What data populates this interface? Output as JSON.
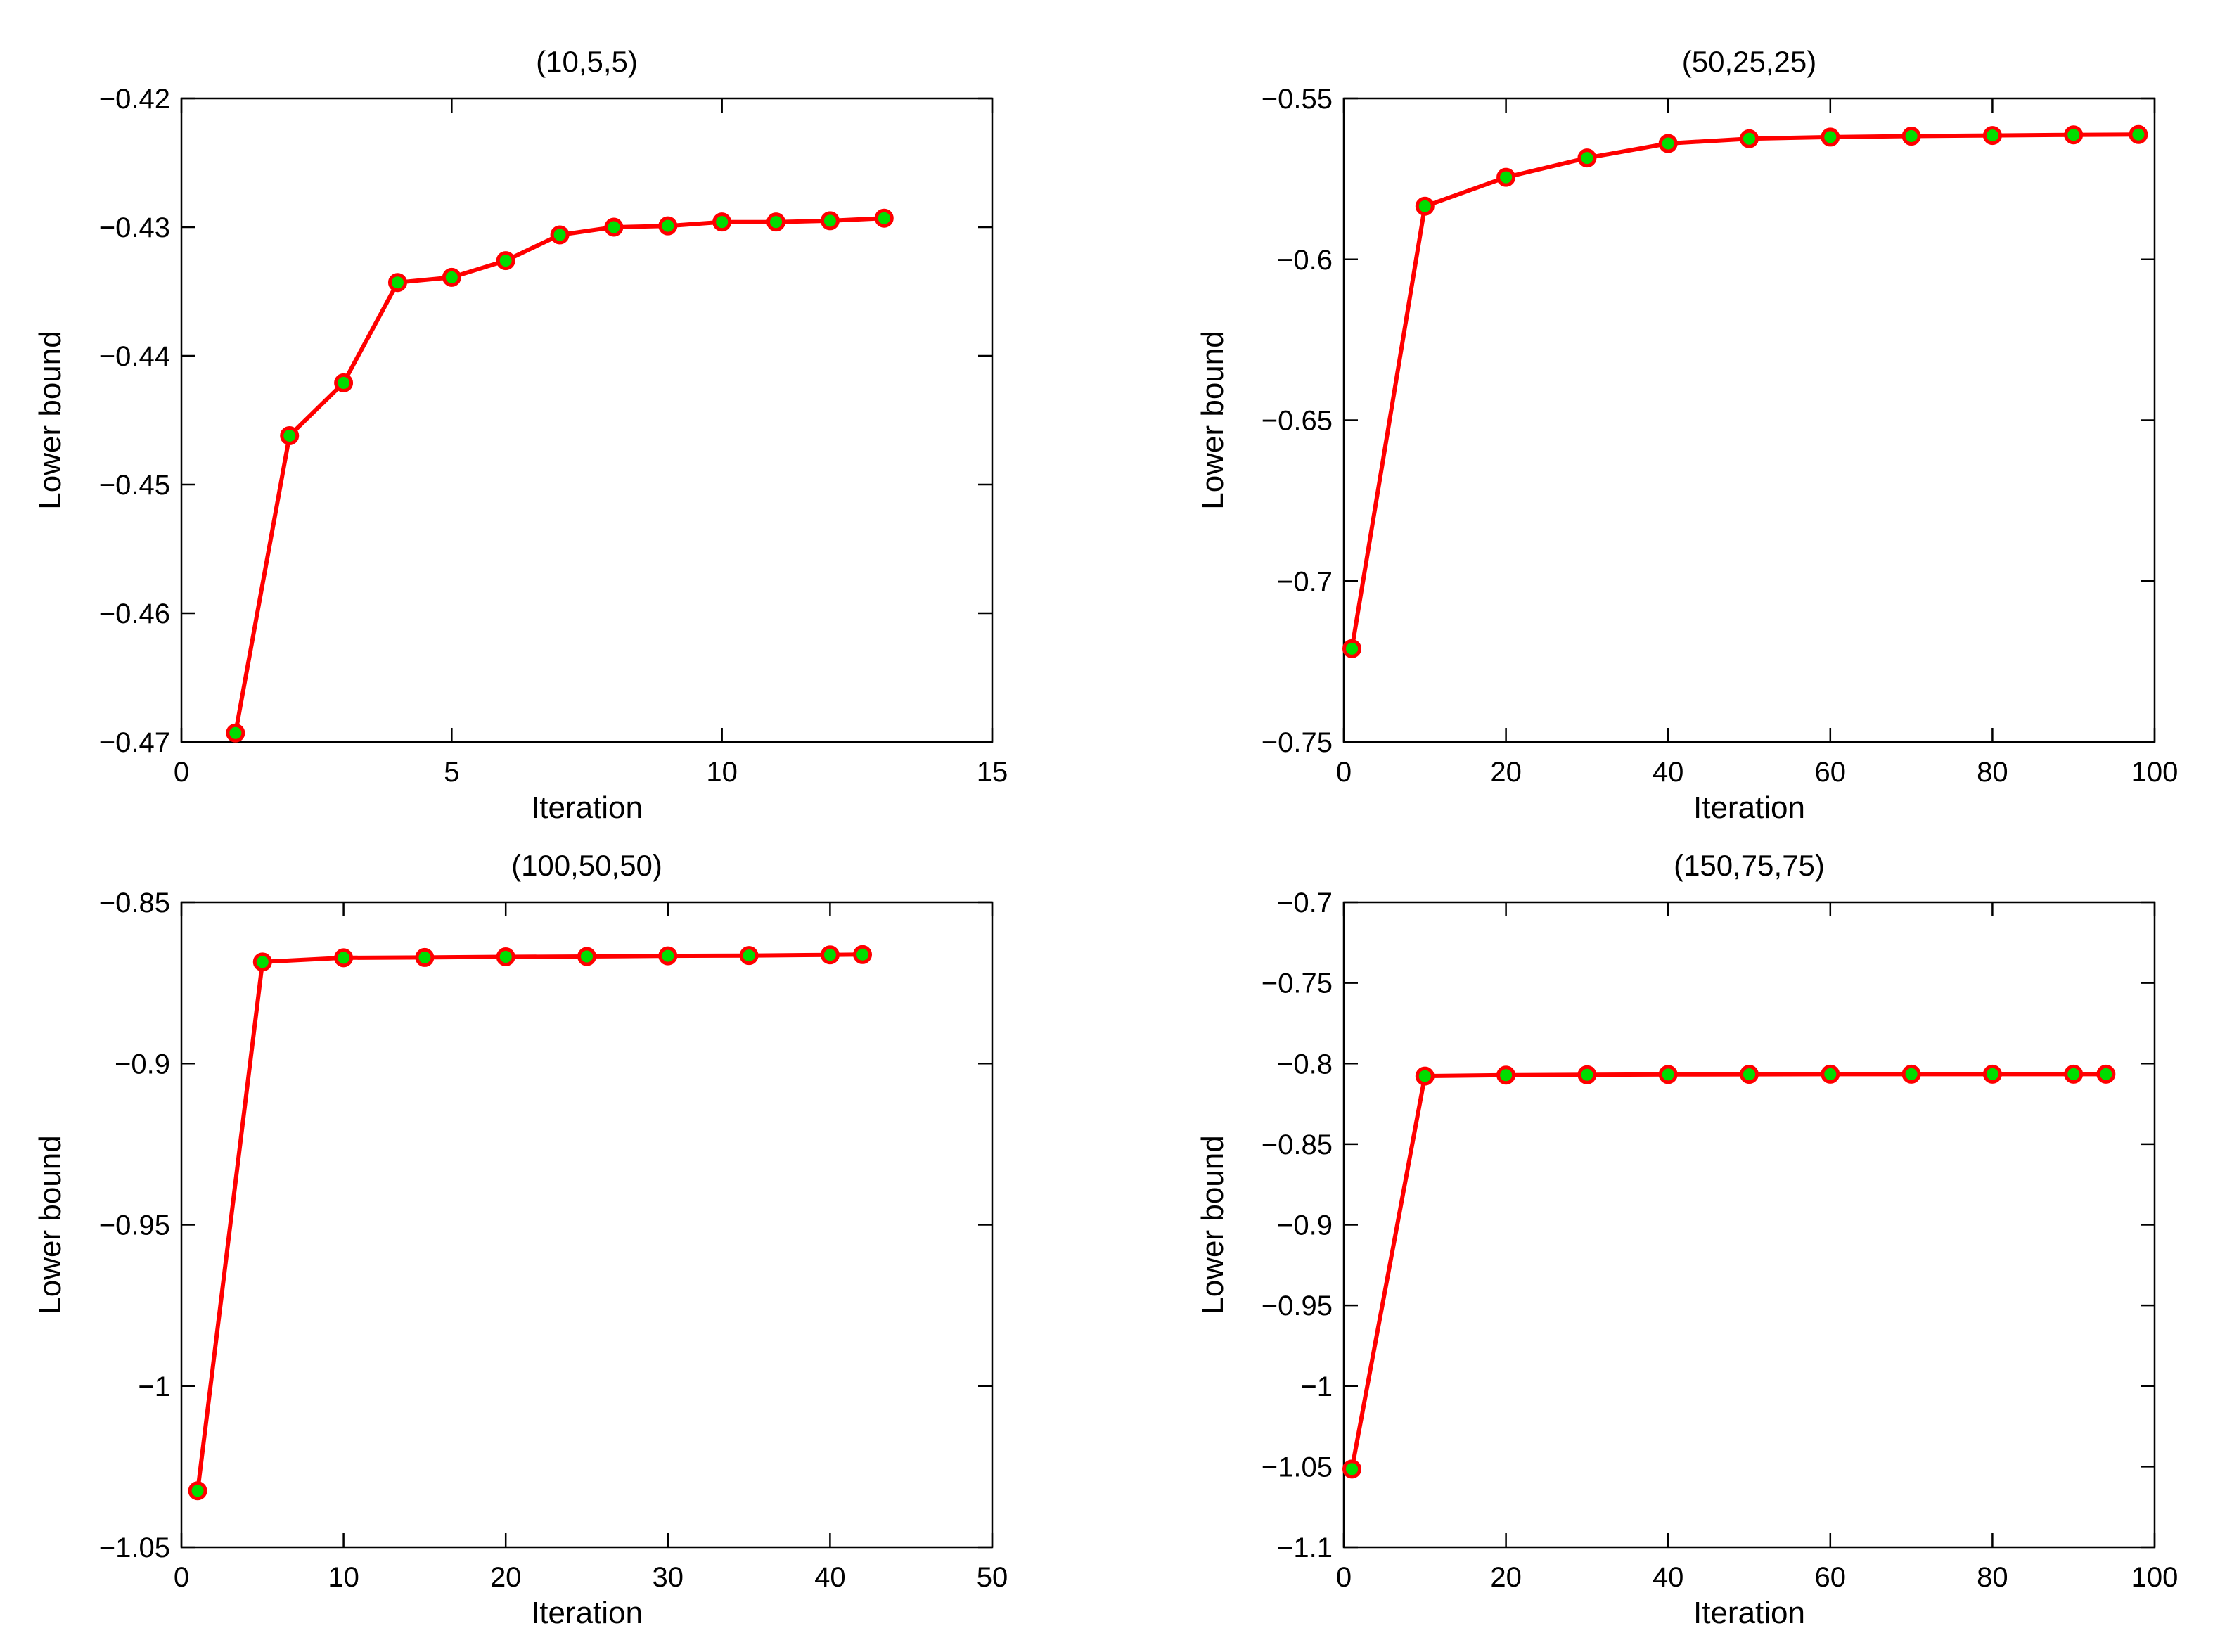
{
  "chart_data": [
    {
      "type": "line",
      "title": "(10,5,5)",
      "xlabel": "Iteration",
      "ylabel": "Lower bound",
      "xlim": [
        0,
        15
      ],
      "ylim": [
        -0.47,
        -0.42
      ],
      "xticks": [
        0,
        5,
        10,
        15
      ],
      "xtick_labels": [
        "0",
        "5",
        "10",
        "15"
      ],
      "yticks": [
        -0.47,
        -0.46,
        -0.45,
        -0.44,
        -0.43,
        -0.42
      ],
      "ytick_labels": [
        "−0.47",
        "−0.46",
        "−0.45",
        "−0.44",
        "−0.43",
        "−0.42"
      ],
      "series": [
        {
          "name": "Lower bound",
          "line_color": "#ff0000",
          "marker_face": "#00dd00",
          "marker_edge": "#ff0000",
          "x": [
            1,
            2,
            3,
            4,
            5,
            6,
            7,
            8,
            9,
            10,
            11,
            12,
            13
          ],
          "values": [
            -0.4693,
            -0.4462,
            -0.4421,
            -0.4343,
            -0.4339,
            -0.4326,
            -0.4306,
            -0.43,
            -0.4299,
            -0.4296,
            -0.4296,
            -0.4295,
            -0.4293
          ]
        }
      ]
    },
    {
      "type": "line",
      "title": "(50,25,25)",
      "xlabel": "Iteration",
      "ylabel": "Lower bound",
      "xlim": [
        0,
        100
      ],
      "ylim": [
        -0.75,
        -0.55
      ],
      "xticks": [
        0,
        20,
        40,
        60,
        80,
        100
      ],
      "xtick_labels": [
        "0",
        "20",
        "40",
        "60",
        "80",
        "100"
      ],
      "yticks": [
        -0.75,
        -0.7,
        -0.65,
        -0.6,
        -0.55
      ],
      "ytick_labels": [
        "−0.75",
        "−0.7",
        "−0.65",
        "−0.6",
        "−0.55"
      ],
      "series": [
        {
          "name": "Lower bound",
          "line_color": "#ff0000",
          "marker_face": "#00dd00",
          "marker_edge": "#ff0000",
          "x": [
            1,
            10,
            20,
            30,
            40,
            50,
            60,
            70,
            80,
            90,
            98
          ],
          "values": [
            -0.721,
            -0.5835,
            -0.5745,
            -0.5685,
            -0.564,
            -0.5625,
            -0.562,
            -0.5617,
            -0.5615,
            -0.5613,
            -0.5612
          ]
        }
      ]
    },
    {
      "type": "line",
      "title": "(100,50,50)",
      "xlabel": "Iteration",
      "ylabel": "Lower bound",
      "xlim": [
        0,
        50
      ],
      "ylim": [
        -1.05,
        -0.85
      ],
      "xticks": [
        0,
        10,
        20,
        30,
        40,
        50
      ],
      "xtick_labels": [
        "0",
        "10",
        "20",
        "30",
        "40",
        "50"
      ],
      "yticks": [
        -1.05,
        -1,
        -0.95,
        -0.9,
        -0.85
      ],
      "ytick_labels": [
        "−1.05",
        "−1",
        "−0.95",
        "−0.9",
        "−0.85"
      ],
      "series": [
        {
          "name": "Lower bound",
          "line_color": "#ff0000",
          "marker_face": "#00dd00",
          "marker_edge": "#ff0000",
          "x": [
            1,
            5,
            10,
            15,
            20,
            25,
            30,
            35,
            40,
            42
          ],
          "values": [
            -1.0325,
            -0.8685,
            -0.8672,
            -0.8671,
            -0.8669,
            -0.8668,
            -0.8666,
            -0.8665,
            -0.8663,
            -0.8662
          ]
        }
      ]
    },
    {
      "type": "line",
      "title": "(150,75,75)",
      "xlabel": "Iteration",
      "ylabel": "Lower bound",
      "xlim": [
        0,
        100
      ],
      "ylim": [
        -1.1,
        -0.7
      ],
      "xticks": [
        0,
        20,
        40,
        60,
        80,
        100
      ],
      "xtick_labels": [
        "0",
        "20",
        "40",
        "60",
        "80",
        "100"
      ],
      "yticks": [
        -1.1,
        -1.05,
        -1,
        -0.95,
        -0.9,
        -0.85,
        -0.8,
        -0.75,
        -0.7
      ],
      "ytick_labels": [
        "−1.1",
        "−1.05",
        "−1",
        "−0.95",
        "−0.9",
        "−0.85",
        "−0.8",
        "−0.75",
        "−0.7"
      ],
      "series": [
        {
          "name": "Lower bound",
          "line_color": "#ff0000",
          "marker_face": "#00dd00",
          "marker_edge": "#ff0000",
          "x": [
            1,
            10,
            20,
            30,
            40,
            50,
            60,
            70,
            80,
            90,
            94
          ],
          "values": [
            -1.0515,
            -0.8078,
            -0.8072,
            -0.807,
            -0.8068,
            -0.8067,
            -0.8066,
            -0.8066,
            -0.8066,
            -0.8066,
            -0.8066
          ]
        }
      ]
    }
  ]
}
